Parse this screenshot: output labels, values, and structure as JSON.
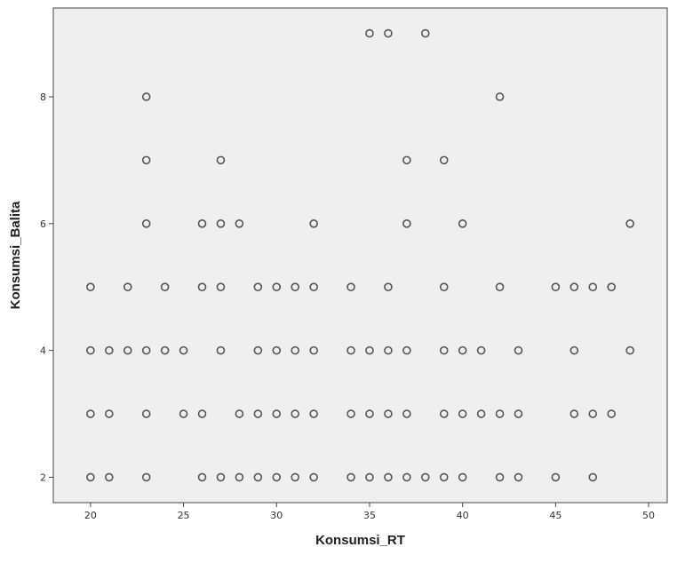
{
  "chart_data": {
    "type": "scatter",
    "title": "",
    "xlabel": "Konsumsi_RT",
    "ylabel": "Konsumsi_Balita",
    "xlim": [
      18,
      51
    ],
    "ylim": [
      1.6,
      9.4
    ],
    "xticks": [
      20,
      25,
      30,
      35,
      40,
      45,
      50
    ],
    "yticks": [
      2,
      4,
      6,
      8
    ],
    "xtick_labels": [
      "20",
      "25",
      "30",
      "35",
      "40",
      "45",
      "50"
    ],
    "ytick_labels": [
      "2",
      "4",
      "6",
      "8"
    ],
    "grid": false,
    "background_color": "#efefef",
    "marker": "hollow-circle",
    "marker_color": "#555555",
    "points": [
      [
        35,
        9
      ],
      [
        36,
        9
      ],
      [
        38,
        9
      ],
      [
        23,
        8
      ],
      [
        42,
        8
      ],
      [
        23,
        7
      ],
      [
        27,
        7
      ],
      [
        37,
        7
      ],
      [
        39,
        7
      ],
      [
        23,
        6
      ],
      [
        26,
        6
      ],
      [
        27,
        6
      ],
      [
        28,
        6
      ],
      [
        32,
        6
      ],
      [
        37,
        6
      ],
      [
        40,
        6
      ],
      [
        49,
        6
      ],
      [
        20,
        5
      ],
      [
        22,
        5
      ],
      [
        24,
        5
      ],
      [
        26,
        5
      ],
      [
        27,
        5
      ],
      [
        29,
        5
      ],
      [
        30,
        5
      ],
      [
        31,
        5
      ],
      [
        32,
        5
      ],
      [
        34,
        5
      ],
      [
        36,
        5
      ],
      [
        39,
        5
      ],
      [
        42,
        5
      ],
      [
        45,
        5
      ],
      [
        46,
        5
      ],
      [
        47,
        5
      ],
      [
        48,
        5
      ],
      [
        20,
        4
      ],
      [
        21,
        4
      ],
      [
        22,
        4
      ],
      [
        23,
        4
      ],
      [
        24,
        4
      ],
      [
        25,
        4
      ],
      [
        27,
        4
      ],
      [
        29,
        4
      ],
      [
        30,
        4
      ],
      [
        31,
        4
      ],
      [
        32,
        4
      ],
      [
        34,
        4
      ],
      [
        35,
        4
      ],
      [
        36,
        4
      ],
      [
        37,
        4
      ],
      [
        39,
        4
      ],
      [
        40,
        4
      ],
      [
        41,
        4
      ],
      [
        43,
        4
      ],
      [
        46,
        4
      ],
      [
        49,
        4
      ],
      [
        20,
        3
      ],
      [
        21,
        3
      ],
      [
        23,
        3
      ],
      [
        25,
        3
      ],
      [
        26,
        3
      ],
      [
        28,
        3
      ],
      [
        29,
        3
      ],
      [
        30,
        3
      ],
      [
        31,
        3
      ],
      [
        32,
        3
      ],
      [
        34,
        3
      ],
      [
        35,
        3
      ],
      [
        36,
        3
      ],
      [
        37,
        3
      ],
      [
        39,
        3
      ],
      [
        40,
        3
      ],
      [
        41,
        3
      ],
      [
        42,
        3
      ],
      [
        43,
        3
      ],
      [
        46,
        3
      ],
      [
        47,
        3
      ],
      [
        48,
        3
      ],
      [
        20,
        2
      ],
      [
        21,
        2
      ],
      [
        23,
        2
      ],
      [
        26,
        2
      ],
      [
        27,
        2
      ],
      [
        28,
        2
      ],
      [
        29,
        2
      ],
      [
        30,
        2
      ],
      [
        31,
        2
      ],
      [
        32,
        2
      ],
      [
        34,
        2
      ],
      [
        35,
        2
      ],
      [
        36,
        2
      ],
      [
        37,
        2
      ],
      [
        38,
        2
      ],
      [
        39,
        2
      ],
      [
        40,
        2
      ],
      [
        42,
        2
      ],
      [
        43,
        2
      ],
      [
        45,
        2
      ],
      [
        47,
        2
      ]
    ]
  }
}
